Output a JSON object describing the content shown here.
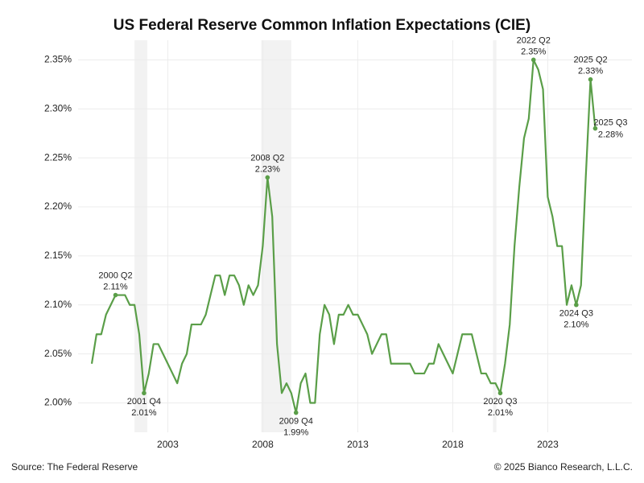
{
  "chart_data": {
    "type": "line",
    "title": "US Federal Reserve Common Inflation Expectations (CIE)",
    "source": "Source: The Federal Reserve",
    "credit": "© 2025 Bianco Research, L.L.C.",
    "color": "#5a9e48",
    "label_color": "#6aa84f",
    "grid": true,
    "recessions": [
      [
        2001.25,
        2001.92
      ],
      [
        2007.92,
        2009.5
      ],
      [
        2020.12,
        2020.3
      ]
    ],
    "x": [
      1999,
      1999.25,
      1999.5,
      1999.75,
      2000,
      2000.25,
      2000.5,
      2000.75,
      2001,
      2001.25,
      2001.5,
      2001.75,
      2002,
      2002.25,
      2002.5,
      2002.75,
      2003,
      2003.25,
      2003.5,
      2003.75,
      2004,
      2004.25,
      2004.5,
      2004.75,
      2005,
      2005.25,
      2005.5,
      2005.75,
      2006,
      2006.25,
      2006.5,
      2006.75,
      2007,
      2007.25,
      2007.5,
      2007.75,
      2008,
      2008.25,
      2008.5,
      2008.75,
      2009,
      2009.25,
      2009.5,
      2009.75,
      2010,
      2010.25,
      2010.5,
      2010.75,
      2011,
      2011.25,
      2011.5,
      2011.75,
      2012,
      2012.25,
      2012.5,
      2012.75,
      2013,
      2013.25,
      2013.5,
      2013.75,
      2014,
      2014.25,
      2014.5,
      2014.75,
      2015,
      2015.25,
      2015.5,
      2015.75,
      2016,
      2016.25,
      2016.5,
      2016.75,
      2017,
      2017.25,
      2017.5,
      2017.75,
      2018,
      2018.25,
      2018.5,
      2018.75,
      2019,
      2019.25,
      2019.5,
      2019.75,
      2020,
      2020.25,
      2020.5,
      2020.75,
      2021,
      2021.25,
      2021.5,
      2021.75,
      2022,
      2022.25,
      2022.5,
      2022.75,
      2023,
      2023.25,
      2023.5,
      2023.75,
      2024,
      2024.25,
      2024.5,
      2024.75,
      2025,
      2025.25,
      2025.5
    ],
    "values": [
      2.04,
      2.07,
      2.07,
      2.09,
      2.1,
      2.11,
      2.11,
      2.11,
      2.1,
      2.1,
      2.07,
      2.01,
      2.03,
      2.06,
      2.06,
      2.05,
      2.04,
      2.03,
      2.02,
      2.04,
      2.05,
      2.08,
      2.08,
      2.08,
      2.09,
      2.11,
      2.13,
      2.13,
      2.11,
      2.13,
      2.13,
      2.12,
      2.1,
      2.12,
      2.11,
      2.12,
      2.16,
      2.23,
      2.19,
      2.06,
      2.01,
      2.02,
      2.01,
      1.99,
      2.02,
      2.03,
      2.0,
      2.0,
      2.07,
      2.1,
      2.09,
      2.06,
      2.09,
      2.09,
      2.1,
      2.09,
      2.09,
      2.08,
      2.07,
      2.05,
      2.06,
      2.07,
      2.07,
      2.04,
      2.04,
      2.04,
      2.04,
      2.04,
      2.03,
      2.03,
      2.03,
      2.04,
      2.04,
      2.06,
      2.05,
      2.04,
      2.03,
      2.05,
      2.07,
      2.07,
      2.07,
      2.05,
      2.03,
      2.03,
      2.02,
      2.02,
      2.01,
      2.04,
      2.08,
      2.16,
      2.22,
      2.27,
      2.29,
      2.35,
      2.34,
      2.32,
      2.21,
      2.19,
      2.16,
      2.16,
      2.1,
      2.12,
      2.1,
      2.12,
      2.23,
      2.33,
      2.28
    ],
    "point_labels": [
      null,
      null,
      null,
      null,
      null,
      "2000 Q2",
      null,
      null,
      null,
      null,
      null,
      "2001 Q4",
      null,
      null,
      null,
      null,
      null,
      null,
      null,
      null,
      null,
      null,
      null,
      null,
      null,
      null,
      null,
      null,
      null,
      null,
      null,
      null,
      null,
      null,
      null,
      null,
      null,
      "2008 Q2",
      null,
      null,
      null,
      null,
      null,
      "2009 Q4",
      null,
      null,
      null,
      null,
      null,
      null,
      null,
      null,
      null,
      null,
      null,
      null,
      null,
      null,
      null,
      null,
      null,
      null,
      null,
      null,
      null,
      null,
      null,
      null,
      null,
      null,
      null,
      null,
      null,
      null,
      null,
      null,
      null,
      null,
      null,
      null,
      null,
      null,
      null,
      null,
      null,
      null,
      "2020 Q3",
      null,
      null,
      null,
      null,
      null,
      null,
      "2022 Q2",
      null,
      null,
      null,
      null,
      null,
      null,
      null,
      null,
      "2024 Q3",
      null,
      null,
      "2025 Q2",
      "2025 Q3"
    ],
    "value_labels": [
      null,
      null,
      null,
      null,
      null,
      "2.11%",
      null,
      null,
      null,
      null,
      null,
      "2.01%",
      null,
      null,
      null,
      null,
      null,
      null,
      null,
      null,
      null,
      null,
      null,
      null,
      null,
      null,
      null,
      null,
      null,
      null,
      null,
      null,
      null,
      null,
      null,
      null,
      null,
      "2.23%",
      null,
      null,
      null,
      null,
      null,
      "1.99%",
      null,
      null,
      null,
      null,
      null,
      null,
      null,
      null,
      null,
      null,
      null,
      null,
      null,
      null,
      null,
      null,
      null,
      null,
      null,
      null,
      null,
      null,
      null,
      null,
      null,
      null,
      null,
      null,
      null,
      null,
      null,
      null,
      null,
      null,
      null,
      null,
      null,
      null,
      null,
      null,
      null,
      null,
      "2.01%",
      null,
      null,
      null,
      null,
      null,
      null,
      "2.35%",
      null,
      null,
      null,
      null,
      null,
      null,
      null,
      null,
      "2.10%",
      null,
      null,
      "2.33%",
      "2.28%"
    ],
    "xlim": [
      1998.28,
      2027.43
    ],
    "xticks": [
      2003,
      2008,
      2013,
      2018,
      2023
    ],
    "ylim": [
      1.97,
      2.37
    ],
    "yticks": [
      {
        "value": 2.0,
        "label": "2.00%"
      },
      {
        "value": 2.05,
        "label": "2.05%"
      },
      {
        "value": 2.1,
        "label": "2.10%"
      },
      {
        "value": 2.15,
        "label": "2.15%"
      },
      {
        "value": 2.2,
        "label": "2.20%"
      },
      {
        "value": 2.25,
        "label": "2.25%"
      },
      {
        "value": 2.3,
        "label": "2.30%"
      },
      {
        "value": 2.35,
        "label": "2.35%"
      }
    ]
  }
}
